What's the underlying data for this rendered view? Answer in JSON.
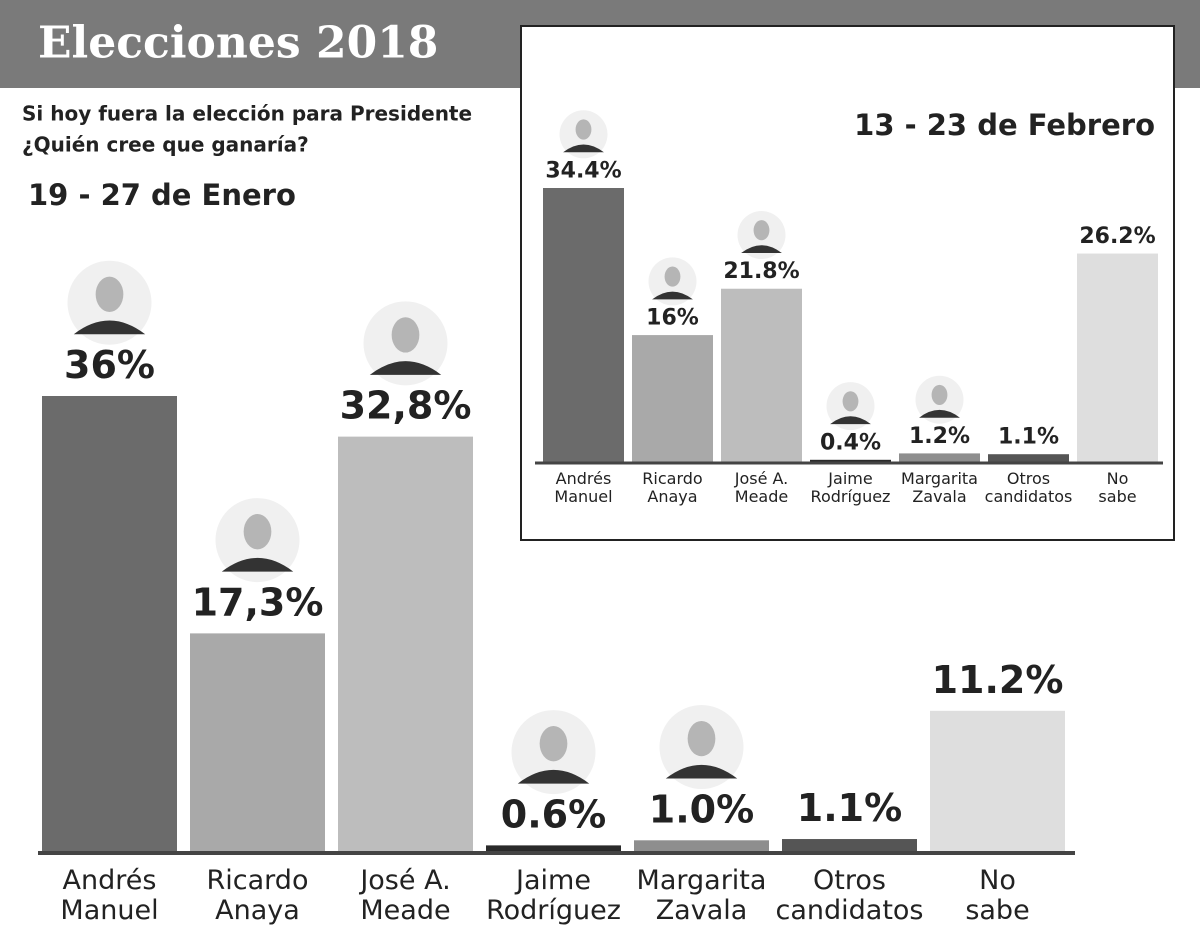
{
  "title": "Elecciones 2018",
  "subtitle": [
    "Si hoy fuera la elección para Presidente",
    "¿Quién cree que ganaría?"
  ],
  "chart_data": [
    {
      "type": "bar",
      "title": "19 - 27 de Enero",
      "categories": [
        "Andrés\nManuel",
        "Ricardo\nAnaya",
        "José A.\nMeade",
        "Jaime\nRodríguez",
        "Margarita\nZavala",
        "Otros\ncandidatos",
        "No\nsabe"
      ],
      "values": [
        36,
        17.3,
        32.8,
        0.6,
        1.0,
        1.1,
        11.2
      ],
      "value_labels": [
        "36%",
        "17,3%",
        "32,8%",
        "0.6%",
        "1.0%",
        "1.1%",
        "11.2%"
      ],
      "colors": [
        "#6b6b6b",
        "#a9a9a9",
        "#bdbdbd",
        "#2a2a2a",
        "#8e8e8e",
        "#555555",
        "#dedede"
      ]
    },
    {
      "type": "bar",
      "title": "13 - 23 de Febrero",
      "categories": [
        "Andrés\nManuel",
        "Ricardo\nAnaya",
        "José A.\nMeade",
        "Jaime\nRodríguez",
        "Margarita\nZavala",
        "Otros\ncandidatos",
        "No\nsabe"
      ],
      "values": [
        34.4,
        16,
        21.8,
        0.4,
        1.2,
        1.1,
        26.2
      ],
      "value_labels": [
        "34.4%",
        "16%",
        "21.8%",
        "0.4%",
        "1.2%",
        "1.1%",
        "26.2%"
      ],
      "colors": [
        "#6b6b6b",
        "#a9a9a9",
        "#bdbdbd",
        "#2a2a2a",
        "#8e8e8e",
        "#555555",
        "#dedede"
      ]
    }
  ]
}
